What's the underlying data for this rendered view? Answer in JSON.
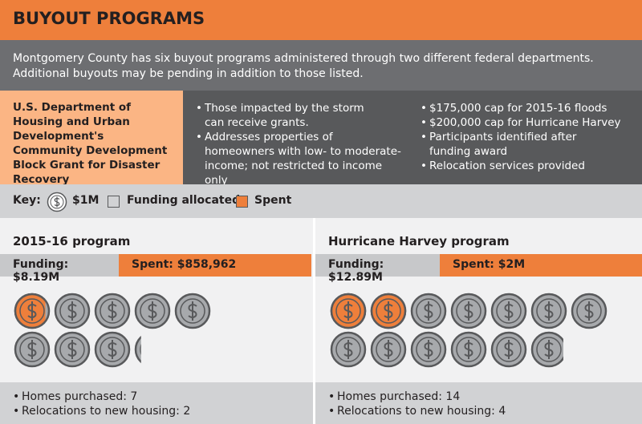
{
  "header": {
    "title": "BUYOUT PROGRAMS"
  },
  "intro": "Montgomery County has six buyout programs administered through two different federal departments. Additional buyouts may be pending in addition to those listed.",
  "department": {
    "name": "U.S. Department of Housing and Urban Development's Community Development Block Grant for Disaster Recovery",
    "bullets_left": [
      "Those impacted by the storm can receive grants.",
      "Addresses properties of homeowners with low- to moderate- income; not restricted to income only"
    ],
    "bullets_right": [
      "$175,000 cap for 2015-16 floods",
      "$200,000 cap for Hurricane Harvey",
      "Participants identified after funding award",
      "Relocation services provided"
    ]
  },
  "key": {
    "label": "Key:",
    "coin": "$1M",
    "funding": "Funding allocated",
    "spent": "Spent"
  },
  "programs": [
    {
      "title": "2015-16 program",
      "funding": {
        "value": 8.19,
        "label": "Funding: $8.19M"
      },
      "spent": {
        "value": 0.858962,
        "label": "Spent: $858,962"
      },
      "bullets": [
        "Homes purchased: 7",
        "Relocations to new housing: 2"
      ]
    },
    {
      "title": "Hurricane Harvey program",
      "funding": {
        "value": 12.89,
        "label": "Funding: $12.89M"
      },
      "spent": {
        "value": 2,
        "label": "Spent: $2M"
      },
      "bullets": [
        "Homes purchased: 14",
        "Relocations to new housing: 4"
      ]
    }
  ]
}
